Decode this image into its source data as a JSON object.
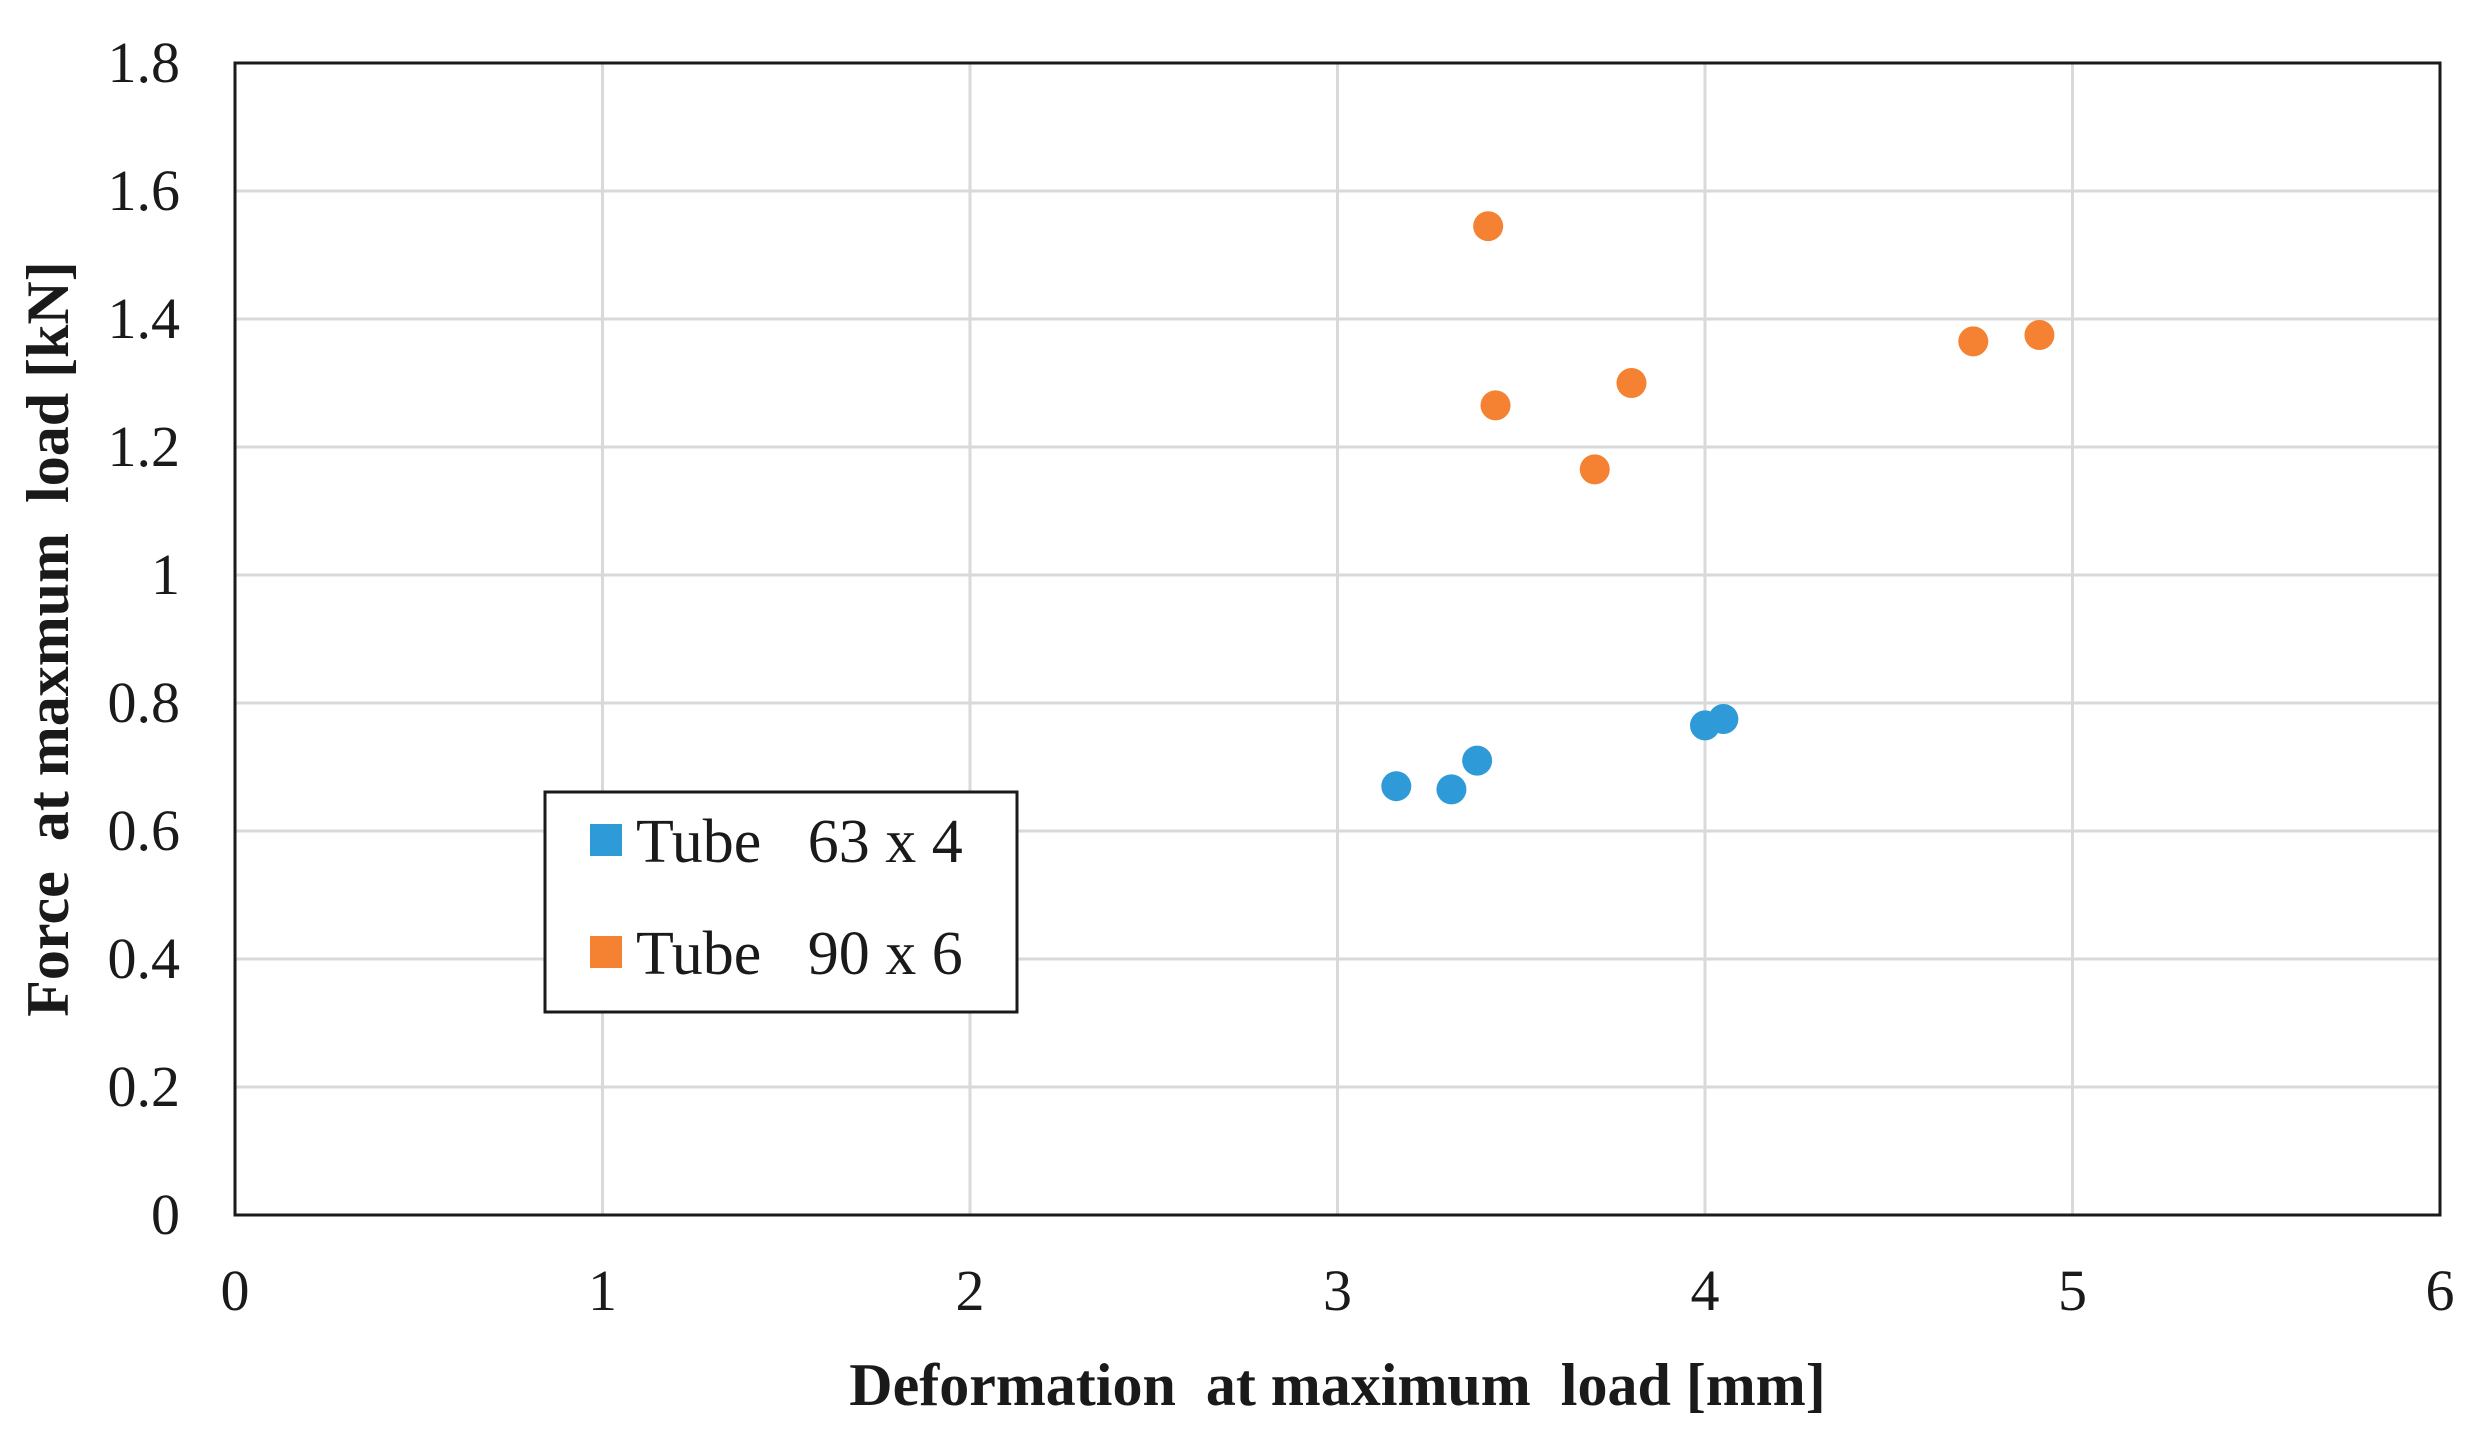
{
  "chart_data": {
    "type": "scatter",
    "title": "",
    "xlabel": "Deformation  at maximum  load [mm]",
    "ylabel": "Force  at maxmum  load [kN]",
    "xlim": [
      0,
      6
    ],
    "ylim": [
      0,
      1.8
    ],
    "x_ticks": [
      0,
      1,
      2,
      3,
      4,
      5,
      6
    ],
    "x_tick_labels": [
      "0",
      "1",
      "2",
      "3",
      "4",
      "5",
      "6"
    ],
    "y_ticks": [
      0,
      0.2,
      0.4,
      0.6,
      0.8,
      1.0,
      1.2,
      1.4,
      1.6,
      1.8
    ],
    "y_tick_labels": [
      "0",
      "0.2",
      "0.4",
      "0.6",
      "0.8",
      "1",
      "1.2",
      "1.4",
      "1.6",
      "1.8"
    ],
    "grid": true,
    "legend_position": "lower-left",
    "series": [
      {
        "name": "Tube   63 x 4",
        "color": "#2e9bd8",
        "points": [
          {
            "x": 3.16,
            "y": 0.67
          },
          {
            "x": 3.31,
            "y": 0.665
          },
          {
            "x": 3.38,
            "y": 0.71
          },
          {
            "x": 4.0,
            "y": 0.765
          },
          {
            "x": 4.05,
            "y": 0.775
          }
        ]
      },
      {
        "name": "Tube   90 x 6",
        "color": "#f58232",
        "points": [
          {
            "x": 3.41,
            "y": 1.545
          },
          {
            "x": 3.43,
            "y": 1.265
          },
          {
            "x": 3.7,
            "y": 1.165
          },
          {
            "x": 3.8,
            "y": 1.3
          },
          {
            "x": 4.73,
            "y": 1.365
          },
          {
            "x": 4.91,
            "y": 1.375
          }
        ]
      }
    ]
  }
}
